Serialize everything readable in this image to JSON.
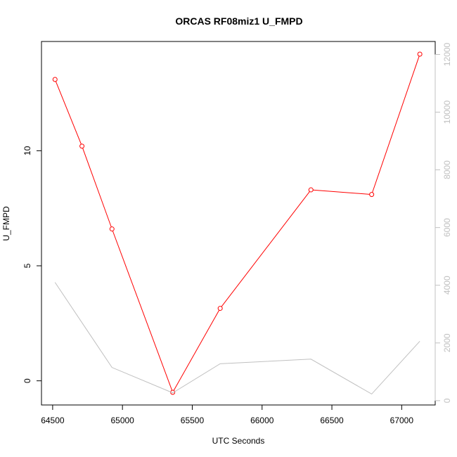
{
  "chart_data": {
    "type": "line",
    "title": "ORCAS RF08miz1 U_FMPD",
    "xlabel": "UTC Seconds",
    "ylabel": "U_FMPD",
    "xlim": [
      64420,
      67240
    ],
    "ylim": [
      -1.05,
      14.75
    ],
    "y2lim": [
      -150,
      12450
    ],
    "x_ticks": [
      64500,
      65000,
      65500,
      66000,
      66500,
      67000
    ],
    "y_ticks": [
      0,
      5,
      10
    ],
    "y2_ticks": [
      0,
      2000,
      4000,
      6000,
      8000,
      10000,
      12000
    ],
    "grid": false,
    "series": [
      {
        "axis": "left",
        "color": "#ff0000",
        "markers": true,
        "x": [
          64517,
          64710,
          64925,
          65360,
          65700,
          66350,
          66785,
          67130
        ],
        "values": [
          13.1,
          10.2,
          6.6,
          -0.5,
          3.15,
          8.3,
          8.1,
          14.2
        ]
      },
      {
        "axis": "right",
        "color": "#c0c0c0",
        "markers": false,
        "x": [
          64517,
          64925,
          65360,
          65700,
          66350,
          66785,
          67130
        ],
        "values": [
          4100,
          1150,
          270,
          1280,
          1440,
          230,
          2060
        ]
      }
    ]
  }
}
